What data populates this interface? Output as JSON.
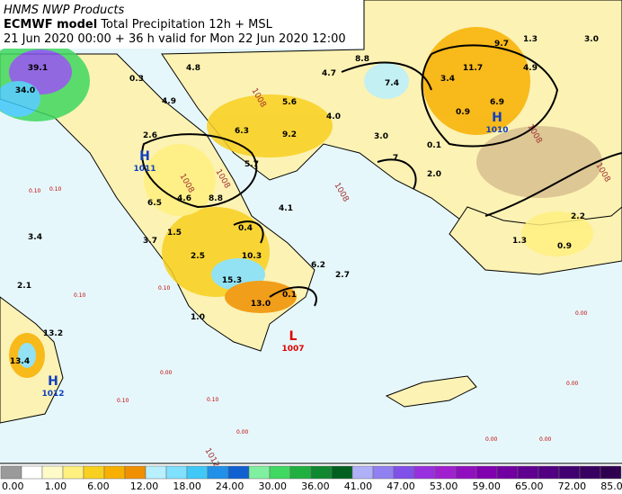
{
  "header": {
    "line1": "HNMS NWP Products",
    "model": "ECMWF model",
    "title": "Total Precipitation 12h + MSL",
    "line3": "21 Jun 2020 00:00 + 36 h valid for Mon 22 Jun 2020 12:00"
  },
  "map": {
    "values": [
      "39.1",
      "34.0",
      "0.3",
      "4.8",
      "4.9",
      "2.6",
      "5.6",
      "4.7",
      "8.8",
      "7.4",
      "3.4",
      "11.7",
      "9.7",
      "1.3",
      "3.0",
      "4.9",
      "0.9",
      "6.9",
      "4.0",
      "6.3",
      "9.2",
      "3.0",
      "0.1",
      "5.7",
      "7",
      "2.0",
      "6.5",
      "4.6",
      "8.8",
      "4.1",
      "1.5",
      "0.4",
      "3.7",
      "2.5",
      "10.3",
      "6.2",
      "15.3",
      "0.1",
      "2.7",
      "2.1",
      "3.4",
      "13.0",
      "1.0",
      "13.2",
      "13.4",
      "2.2",
      "1.3",
      "0.9"
    ],
    "centers": [
      {
        "letter": "H",
        "pressure": "1011"
      },
      {
        "letter": "H",
        "pressure": "1010"
      },
      {
        "letter": "H",
        "pressure": "1012"
      },
      {
        "letter": "L",
        "pressure": "1007"
      }
    ],
    "isobar_labels": [
      "1008",
      "1008",
      "1008",
      "1008",
      "1008",
      "1008",
      "1012"
    ],
    "small_values": [
      "0.10",
      "0.10",
      "0.10",
      "0.10",
      "0.00",
      "0.00",
      "0.00",
      "0.00",
      "0.00",
      "0.00",
      "0.10",
      "0.10"
    ]
  },
  "colorbar": {
    "labels": [
      "0.00",
      "1.00",
      "6.00",
      "12.00",
      "18.00",
      "24.00",
      "30.00",
      "36.00",
      "41.00",
      "47.00",
      "53.00",
      "59.00",
      "65.00",
      "72.00",
      "85.00"
    ],
    "colors": [
      "#9a9a9a",
      "#ffffff",
      "#fffbc8",
      "#fff080",
      "#f8d020",
      "#f8b000",
      "#f09000",
      "#b8f0ff",
      "#80e0ff",
      "#40c8f8",
      "#2090e8",
      "#1060d0",
      "#80f0a0",
      "#40d860",
      "#20b040",
      "#108830",
      "#006020",
      "#b0b0f8",
      "#9080f0",
      "#8050e8",
      "#9830e0",
      "#a020d0",
      "#9010c0",
      "#8000b0",
      "#7000a0",
      "#600090",
      "#500080",
      "#400070",
      "#380060",
      "#300050"
    ]
  }
}
